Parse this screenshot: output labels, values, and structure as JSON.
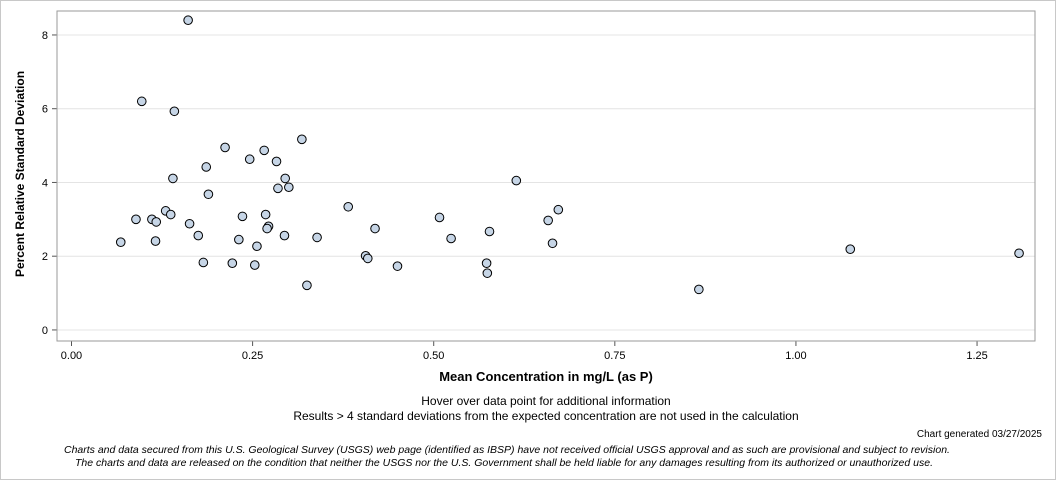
{
  "chart_data": {
    "type": "scatter",
    "xlabel": "Mean Concentration in mg/L (as P)",
    "ylabel": "Percent Relative Standard Deviation",
    "xlim": [
      -0.02,
      1.33
    ],
    "ylim": [
      -0.3,
      8.65
    ],
    "xticks": [
      0,
      0.25,
      0.5,
      0.75,
      1.0,
      1.25
    ],
    "xtick_labels": [
      "0.00",
      "0.25",
      "0.50",
      "0.75",
      "1.00",
      "1.25"
    ],
    "yticks": [
      0,
      2,
      4,
      6,
      8
    ],
    "ytick_labels": [
      "0",
      "2",
      "4",
      "6",
      "8"
    ],
    "grid": "horizontal",
    "marker_color": "#c6d5e6",
    "marker_edge": "#000000",
    "points": [
      {
        "x": 0.161,
        "y": 8.4
      },
      {
        "x": 0.097,
        "y": 6.2
      },
      {
        "x": 0.142,
        "y": 5.93
      },
      {
        "x": 0.318,
        "y": 5.17
      },
      {
        "x": 0.212,
        "y": 4.95
      },
      {
        "x": 0.266,
        "y": 4.87
      },
      {
        "x": 0.246,
        "y": 4.63
      },
      {
        "x": 0.283,
        "y": 4.57
      },
      {
        "x": 0.186,
        "y": 4.42
      },
      {
        "x": 0.14,
        "y": 4.11
      },
      {
        "x": 0.295,
        "y": 4.11
      },
      {
        "x": 0.614,
        "y": 4.05
      },
      {
        "x": 0.285,
        "y": 3.84
      },
      {
        "x": 0.3,
        "y": 3.87
      },
      {
        "x": 0.189,
        "y": 3.68
      },
      {
        "x": 0.382,
        "y": 3.34
      },
      {
        "x": 0.672,
        "y": 3.26
      },
      {
        "x": 0.13,
        "y": 3.23
      },
      {
        "x": 0.137,
        "y": 3.13
      },
      {
        "x": 0.268,
        "y": 3.13
      },
      {
        "x": 0.236,
        "y": 3.08
      },
      {
        "x": 0.508,
        "y": 3.05
      },
      {
        "x": 0.089,
        "y": 3.0
      },
      {
        "x": 0.111,
        "y": 3.0
      },
      {
        "x": 0.658,
        "y": 2.97
      },
      {
        "x": 0.117,
        "y": 2.93
      },
      {
        "x": 0.163,
        "y": 2.88
      },
      {
        "x": 0.272,
        "y": 2.81
      },
      {
        "x": 0.27,
        "y": 2.75
      },
      {
        "x": 0.419,
        "y": 2.75
      },
      {
        "x": 0.577,
        "y": 2.67
      },
      {
        "x": 0.175,
        "y": 2.56
      },
      {
        "x": 0.294,
        "y": 2.56
      },
      {
        "x": 0.339,
        "y": 2.51
      },
      {
        "x": 0.524,
        "y": 2.48
      },
      {
        "x": 0.231,
        "y": 2.45
      },
      {
        "x": 0.116,
        "y": 2.41
      },
      {
        "x": 0.068,
        "y": 2.38
      },
      {
        "x": 0.664,
        "y": 2.35
      },
      {
        "x": 0.256,
        "y": 2.27
      },
      {
        "x": 1.075,
        "y": 2.19
      },
      {
        "x": 1.308,
        "y": 2.08
      },
      {
        "x": 0.406,
        "y": 2.01
      },
      {
        "x": 0.409,
        "y": 1.94
      },
      {
        "x": 0.182,
        "y": 1.83
      },
      {
        "x": 0.222,
        "y": 1.81
      },
      {
        "x": 0.573,
        "y": 1.81
      },
      {
        "x": 0.253,
        "y": 1.76
      },
      {
        "x": 0.45,
        "y": 1.73
      },
      {
        "x": 0.574,
        "y": 1.54
      },
      {
        "x": 0.325,
        "y": 1.21
      },
      {
        "x": 0.866,
        "y": 1.1
      }
    ]
  },
  "notes": {
    "hover": "Hover over data point for additional information",
    "results": "Results > 4 standard deviations from the expected concentration are not used in the calculation",
    "generated": "Chart generated 03/27/2025",
    "disclaimer_line1": "Charts and data secured from this U.S. Geological Survey (USGS) web page (identified as IBSP) have not received official USGS approval and as such are provisional and subject to revision.",
    "disclaimer_line2": "The charts and data are released on the condition that neither the USGS nor the U.S. Government shall be held liable for any damages resulting from its authorized or unauthorized use."
  }
}
